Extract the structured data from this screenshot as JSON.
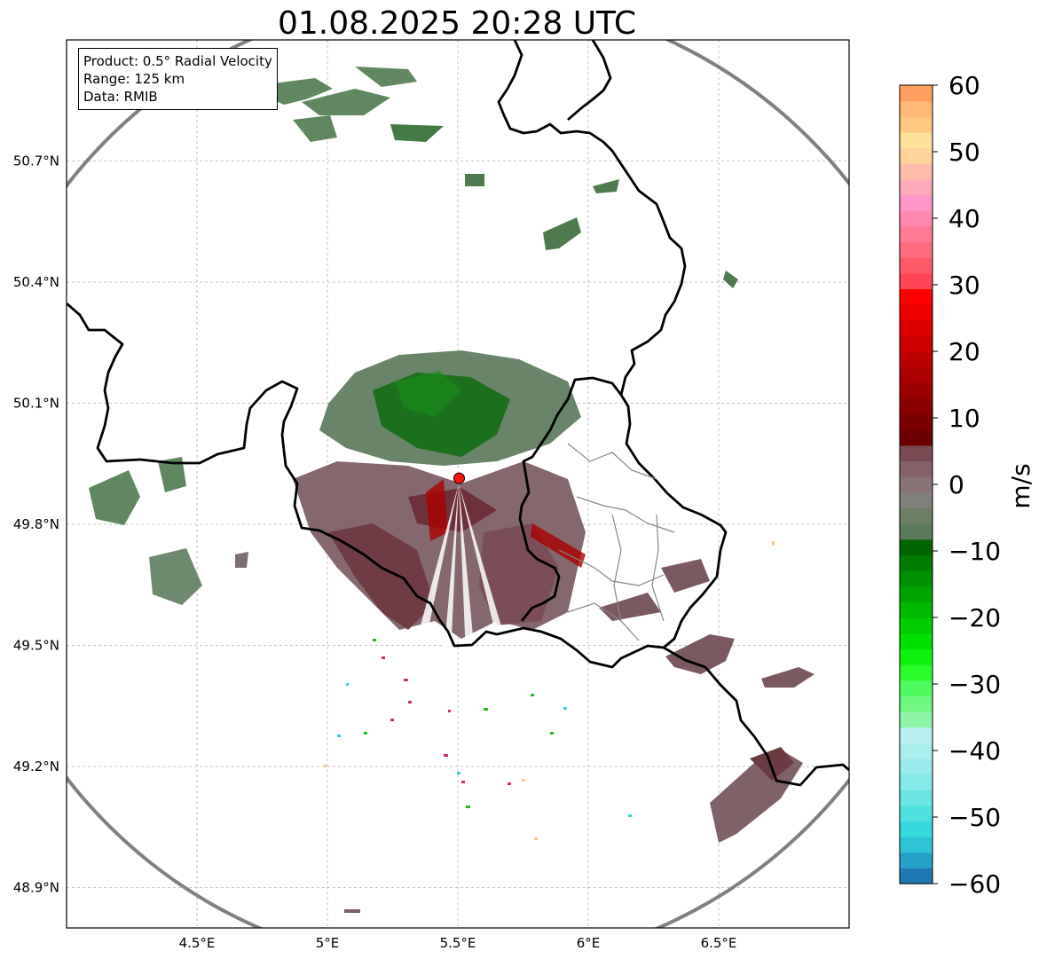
{
  "title": "01.08.2025 20:28 UTC",
  "info_box": {
    "product": "Product: 0.5° Radial Velocity",
    "range": "Range: 125 km",
    "data": "Data: RMIB"
  },
  "map": {
    "lon_range": [
      4.0,
      7.0
    ],
    "lat_range": [
      48.8,
      51.0
    ],
    "x_ticks": [
      {
        "value": 4.5,
        "label": "4.5°E"
      },
      {
        "value": 5.0,
        "label": "5°E"
      },
      {
        "value": 5.5,
        "label": "5.5°E"
      },
      {
        "value": 6.0,
        "label": "6°E"
      },
      {
        "value": 6.5,
        "label": "6.5°E"
      }
    ],
    "y_ticks": [
      {
        "value": 50.7,
        "label": "50.7°N"
      },
      {
        "value": 50.4,
        "label": "50.4°N"
      },
      {
        "value": 50.1,
        "label": "50.1°N"
      },
      {
        "value": 49.8,
        "label": "49.8°N"
      },
      {
        "value": 49.5,
        "label": "49.5°N"
      },
      {
        "value": 49.2,
        "label": "49.2°N"
      },
      {
        "value": 48.9,
        "label": "48.9°N"
      }
    ],
    "radar_site": {
      "lon": 5.505,
      "lat": 49.914
    },
    "range_circle_color": "#808080",
    "border_color": "#000000"
  },
  "colorbar": {
    "unit": "m/s",
    "min": -60,
    "max": 60,
    "ticks": [
      "60",
      "50",
      "40",
      "30",
      "20",
      "10",
      "0",
      "−10",
      "−20",
      "−30",
      "−40",
      "−50",
      "−60"
    ],
    "colors": [
      "#1f77b4",
      "#25a0c8",
      "#2ec4d6",
      "#36d9dc",
      "#4fe0e0",
      "#6be5e3",
      "#85e9e7",
      "#9aebeb",
      "#abeeee",
      "#bbf0f0",
      "#8ef5a8",
      "#6ef882",
      "#4ffa5e",
      "#2afb2a",
      "#0ef20e",
      "#00e000",
      "#00cc00",
      "#00b800",
      "#00a400",
      "#009000",
      "#007c00",
      "#006400",
      "#5b7a5b",
      "#6a7f66",
      "#7f807c",
      "#8a7374",
      "#85626a",
      "#7a4a52",
      "#6b0000",
      "#7a0000",
      "#8a0000",
      "#9a0000",
      "#aa0000",
      "#bb0000",
      "#cc0000",
      "#dd0000",
      "#ee0000",
      "#ff0000",
      "#ff4455",
      "#ff5a6a",
      "#ff6c80",
      "#ff7a95",
      "#ff88b0",
      "#ff98c8",
      "#ffaabb",
      "#ffbcaa",
      "#ffd49a",
      "#ffe29a",
      "#ffc880",
      "#ffb878",
      "#ffa060"
    ]
  }
}
